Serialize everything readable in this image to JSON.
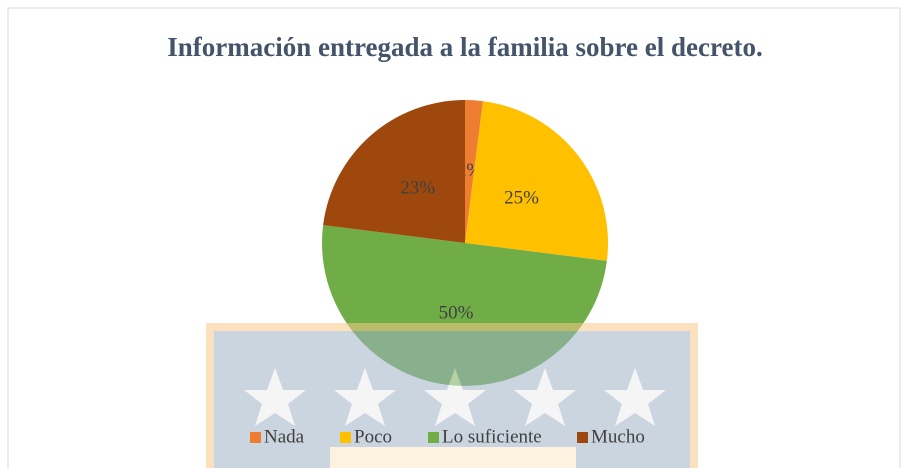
{
  "chart_data": {
    "type": "pie",
    "title": "Información entregada a la familia sobre el decreto.",
    "categories": [
      "Nada",
      "Poco",
      "Lo suficiente",
      "Mucho"
    ],
    "values": [
      2,
      25,
      50,
      23
    ],
    "value_labels": [
      "2%",
      "25%",
      "50%",
      "23%"
    ],
    "colors": [
      "#ed7d31",
      "#ffc000",
      "#70ad47",
      "#9e480e"
    ],
    "legend": "bottom"
  }
}
